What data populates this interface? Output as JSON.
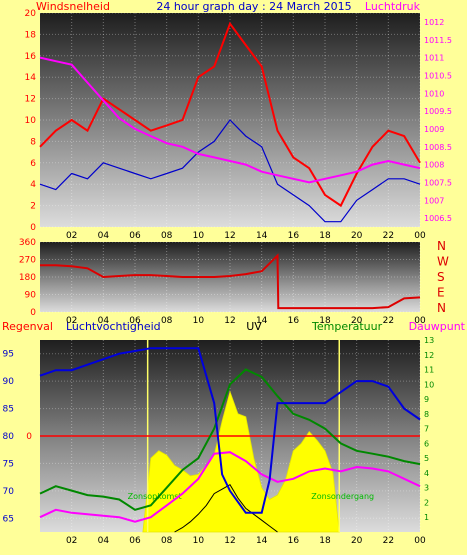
{
  "header": {
    "left_title": "Windsnelheid",
    "center_title": "24 hour graph day : 24 March 2015",
    "right_title": "Luchtdruk"
  },
  "colors": {
    "background": "#ffff99",
    "wind": "#ff0000",
    "gust_line": "#0000cc",
    "pressure": "#ff00ff",
    "direction": "#dd0000",
    "humidity": "#0000dd",
    "temperature": "#008800",
    "dewpoint": "#ff00ff",
    "uv": "#ffff00",
    "rain": "#ff0000",
    "solar": "#000000"
  },
  "chart_data": [
    {
      "type": "line",
      "name": "wind-pressure",
      "title": "24 hour graph day : 24 March 2015",
      "ylabel": "Windsnelheid",
      "y2label": "Luchtdruk",
      "x_ticks": [
        "02",
        "04",
        "06",
        "08",
        "10",
        "12",
        "14",
        "16",
        "18",
        "20",
        "22",
        "00"
      ],
      "ylim": [
        0,
        20
      ],
      "y_ticks": [
        "0",
        "2",
        "4",
        "6",
        "8",
        "10",
        "12",
        "14",
        "16",
        "18",
        "20"
      ],
      "y2lim": [
        1006.25,
        1012.25
      ],
      "y2_ticks": [
        "1006.5",
        "1007",
        "1007.5",
        "1008",
        "1008.5",
        "1009",
        "1009.5",
        "1010",
        "1010.5",
        "1011",
        "1011.5",
        "1012"
      ],
      "grid": true,
      "series": [
        {
          "x": [
            0,
            1,
            2,
            3,
            4,
            5,
            6,
            7,
            8,
            9,
            10,
            11,
            12,
            13,
            14,
            15,
            16,
            17,
            18,
            19,
            20,
            21,
            22,
            23,
            24
          ],
          "values": [
            7.5,
            9,
            10,
            9,
            12,
            11,
            10,
            9,
            9.5,
            10,
            14,
            15,
            19,
            17,
            15,
            9,
            6.5,
            5.5,
            3,
            2,
            5,
            7.5,
            9,
            8.5,
            6
          ]
        },
        {
          "x": [
            0,
            1,
            2,
            3,
            4,
            5,
            6,
            7,
            8,
            9,
            10,
            11,
            12,
            13,
            14,
            15,
            16,
            17,
            18,
            19,
            20,
            21,
            22,
            23,
            24
          ],
          "values": [
            4,
            3.5,
            5,
            4.5,
            6,
            5.5,
            5,
            4.5,
            5,
            5.5,
            7,
            8,
            10,
            8.5,
            7.5,
            4,
            3,
            2,
            0.5,
            0.5,
            2.5,
            3.5,
            4.5,
            4.5,
            4
          ]
        },
        {
          "x": [
            0,
            1,
            2,
            3,
            4,
            5,
            6,
            7,
            8,
            9,
            10,
            11,
            12,
            13,
            14,
            15,
            16,
            17,
            18,
            19,
            20,
            21,
            22,
            23,
            24
          ],
          "values": [
            1011.0,
            1010.9,
            1010.8,
            1010.3,
            1009.8,
            1009.3,
            1009.0,
            1008.8,
            1008.6,
            1008.5,
            1008.3,
            1008.2,
            1008.1,
            1008.0,
            1007.8,
            1007.7,
            1007.6,
            1007.5,
            1007.6,
            1007.7,
            1007.8,
            1008.0,
            1008.1,
            1008.0,
            1007.9
          ]
        }
      ]
    },
    {
      "type": "line",
      "name": "wind-direction",
      "x_ticks": [
        "02",
        "04",
        "06",
        "08",
        "10",
        "12",
        "14",
        "16",
        "18",
        "20",
        "22",
        "00"
      ],
      "ylim": [
        0,
        360
      ],
      "y_ticks": [
        "0",
        "90",
        "180",
        "270",
        "360"
      ],
      "y2_ticks": [
        "N",
        "W",
        "S",
        "E",
        "N"
      ],
      "grid": true,
      "series": [
        {
          "x": [
            0,
            1,
            2,
            3,
            4,
            5,
            6,
            7,
            8,
            9,
            10,
            11,
            12,
            13,
            14,
            15,
            15.05,
            16,
            17,
            18,
            19,
            20,
            21,
            22,
            23,
            24
          ],
          "values": [
            240,
            240,
            235,
            225,
            180,
            185,
            190,
            190,
            185,
            180,
            180,
            180,
            185,
            195,
            210,
            290,
            20,
            20,
            20,
            20,
            20,
            20,
            20,
            25,
            70,
            75
          ]
        }
      ]
    },
    {
      "type": "line",
      "name": "humidity-temperature-uv",
      "labels": {
        "rain": "Regenval",
        "humidity": "Luchtvochtigheid",
        "uv": "UV",
        "temperature": "Temperatuur",
        "dewpoint": "Dauwpunt",
        "sunrise": "Zonsopkomst",
        "sunset": "Zonsondergang"
      },
      "x_ticks": [
        "02",
        "04",
        "06",
        "08",
        "10",
        "12",
        "14",
        "16",
        "18",
        "20",
        "22",
        "00"
      ],
      "ylim": [
        62.5,
        97.5
      ],
      "y_ticks": [
        "65",
        "70",
        "75",
        "80",
        "85",
        "90",
        "95"
      ],
      "y2lim": [
        0,
        13
      ],
      "y2_ticks": [
        "1",
        "2",
        "3",
        "4",
        "5",
        "6",
        "7",
        "8",
        "9",
        "10",
        "11",
        "12",
        "13"
      ],
      "rain_line": {
        "value": 0,
        "y_value": 80
      },
      "sunrise_hour": 6.8,
      "sunset_hour": 18.9,
      "grid": true,
      "series": [
        {
          "x": [
            0,
            1,
            2,
            3,
            4,
            5,
            6,
            7,
            8,
            9,
            10,
            11,
            11.5,
            12,
            13,
            14,
            14.5,
            15,
            16,
            17,
            18,
            19,
            20,
            21,
            22,
            23,
            24
          ],
          "values": [
            91,
            92,
            92,
            93,
            94,
            95,
            95.5,
            96,
            96,
            96,
            96,
            86,
            73,
            70,
            66,
            66,
            72,
            86,
            86,
            86,
            86,
            88,
            90,
            90,
            89,
            85,
            83
          ]
        },
        {
          "x": [
            0,
            1,
            2,
            3,
            4,
            5,
            6,
            7,
            8,
            9,
            10,
            11,
            12,
            13,
            14,
            15,
            16,
            17,
            18,
            19,
            20,
            21,
            22,
            23,
            24
          ],
          "values": [
            2.6,
            3.1,
            2.8,
            2.5,
            2.4,
            2.2,
            1.5,
            1.8,
            3.0,
            4.2,
            5.0,
            7.0,
            10.0,
            11.0,
            10.5,
            9.2,
            8.0,
            7.6,
            7.0,
            6.0,
            5.5,
            5.3,
            5.1,
            4.8,
            4.6
          ]
        },
        {
          "x": [
            0,
            1,
            2,
            3,
            4,
            5,
            6,
            7,
            8,
            9,
            10,
            11,
            12,
            13,
            14,
            15,
            16,
            17,
            18,
            19,
            20,
            21,
            22,
            23,
            24
          ],
          "values": [
            1.0,
            1.5,
            1.3,
            1.2,
            1.1,
            1.0,
            0.7,
            1.0,
            1.8,
            2.6,
            3.6,
            5.3,
            5.4,
            4.8,
            3.9,
            3.4,
            3.6,
            4.1,
            4.3,
            4.1,
            4.4,
            4.3,
            4.1,
            3.6,
            3.1
          ]
        },
        {
          "x": [
            6.5,
            6.8,
            7,
            7.5,
            8,
            8.5,
            9,
            9.5,
            10,
            10.5,
            11,
            11.5,
            12,
            12.5,
            13,
            13.5,
            14,
            14.5,
            15,
            15.5,
            16,
            16.5,
            17,
            17.5,
            18,
            18.5,
            18.9
          ],
          "values": [
            0,
            3.0,
            5.0,
            5.5,
            5.2,
            4.5,
            4.2,
            3.8,
            3.9,
            4.5,
            5.2,
            7.5,
            9.5,
            8.0,
            7.8,
            5.0,
            3.0,
            2.2,
            2.5,
            3.5,
            5.5,
            6.0,
            6.8,
            6.2,
            5.5,
            4.0,
            0
          ]
        },
        {
          "x": [
            8.5,
            9,
            9.5,
            10,
            10.5,
            11,
            11.5,
            12,
            12.5,
            13,
            13.5,
            14,
            14.5,
            15
          ],
          "values": [
            0,
            0.3,
            0.7,
            1.2,
            1.8,
            2.6,
            2.9,
            3.2,
            2.3,
            1.6,
            1.2,
            0.8,
            0.4,
            0
          ]
        }
      ]
    }
  ]
}
